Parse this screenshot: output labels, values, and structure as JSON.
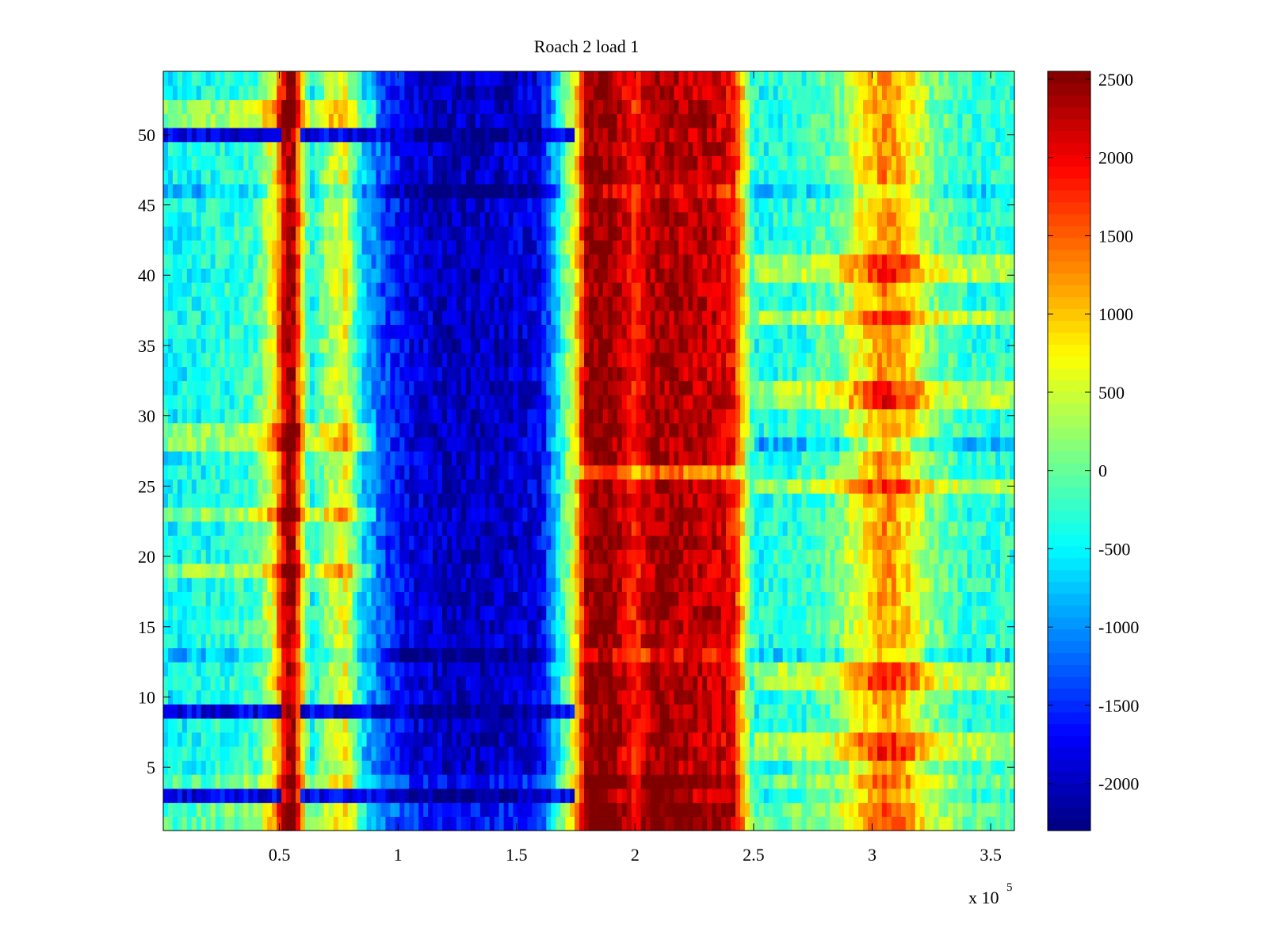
{
  "chart_data": {
    "type": "heatmap",
    "title": "Roach 2 load 1",
    "xlabel": "",
    "ylabel": "",
    "x_exponent_label": "x 10",
    "x_exponent_power": "5",
    "xlim": [
      0.01,
      3.6
    ],
    "ylim": [
      0.5,
      54.5
    ],
    "xticks": [
      0.5,
      1,
      1.5,
      2,
      2.5,
      3,
      3.5
    ],
    "xtick_labels": [
      "0.5",
      "1",
      "1.5",
      "2",
      "2.5",
      "3",
      "3.5"
    ],
    "yticks": [
      5,
      10,
      15,
      20,
      25,
      30,
      35,
      40,
      45,
      50
    ],
    "ytick_labels": [
      "5",
      "10",
      "15",
      "20",
      "25",
      "30",
      "35",
      "40",
      "45",
      "50"
    ],
    "rows": 54,
    "colormap": "jet",
    "clim": [
      -2300,
      2550
    ],
    "colorbar_ticks": [
      2500,
      2000,
      1500,
      1000,
      500,
      0,
      -500,
      -1000,
      -1500,
      -2000
    ],
    "colorbar_labels": [
      "2500",
      "2000",
      "1500",
      "1000",
      "500",
      "0",
      "-500",
      "-1000",
      "-1500",
      "-2000"
    ],
    "grid": false,
    "column_profile": {
      "x": [
        0.01,
        0.2,
        0.4,
        0.48,
        0.53,
        0.56,
        0.6,
        0.63,
        0.7,
        0.78,
        0.85,
        0.95,
        1.05,
        1.2,
        1.4,
        1.6,
        1.68,
        1.75,
        1.8,
        1.9,
        2.0,
        2.05,
        2.1,
        2.2,
        2.35,
        2.42,
        2.5,
        2.7,
        2.85,
        2.95,
        3.05,
        3.15,
        3.25,
        3.4,
        3.6
      ],
      "values": [
        -500,
        -400,
        -200,
        800,
        2400,
        2300,
        700,
        -500,
        200,
        700,
        -700,
        -1400,
        -1800,
        -2000,
        -2000,
        -1800,
        -500,
        800,
        2500,
        2500,
        1800,
        2200,
        2400,
        2300,
        2200,
        1900,
        -400,
        -300,
        0,
        700,
        1300,
        900,
        100,
        -300,
        -300
      ]
    },
    "row_modifiers": [
      {
        "row": 1,
        "effect": "bright"
      },
      {
        "row": 2,
        "effect": "bright"
      },
      {
        "row": 3,
        "effect": "cold-band"
      },
      {
        "row": 4,
        "effect": "bright"
      },
      {
        "row": 6,
        "effect": "warm-right"
      },
      {
        "row": 7,
        "effect": "warm-right"
      },
      {
        "row": 9,
        "effect": "cold-band"
      },
      {
        "row": 11,
        "effect": "warm-right"
      },
      {
        "row": 12,
        "effect": "warm-right"
      },
      {
        "row": 13,
        "effect": "dim"
      },
      {
        "row": 19,
        "effect": "warm-left"
      },
      {
        "row": 23,
        "effect": "warm-left"
      },
      {
        "row": 25,
        "effect": "warm-right"
      },
      {
        "row": 26,
        "effect": "dim-center"
      },
      {
        "row": 28,
        "effect": "warm-left-cold-right"
      },
      {
        "row": 29,
        "effect": "warm-left"
      },
      {
        "row": 31,
        "effect": "warm-right"
      },
      {
        "row": 32,
        "effect": "warm-right"
      },
      {
        "row": 37,
        "effect": "warm-right"
      },
      {
        "row": 40,
        "effect": "warm-right"
      },
      {
        "row": 41,
        "effect": "warm-right"
      },
      {
        "row": 46,
        "effect": "dim"
      },
      {
        "row": 50,
        "effect": "cold-band"
      },
      {
        "row": 51,
        "effect": "warm-left"
      },
      {
        "row": 52,
        "effect": "warm-left"
      }
    ]
  }
}
